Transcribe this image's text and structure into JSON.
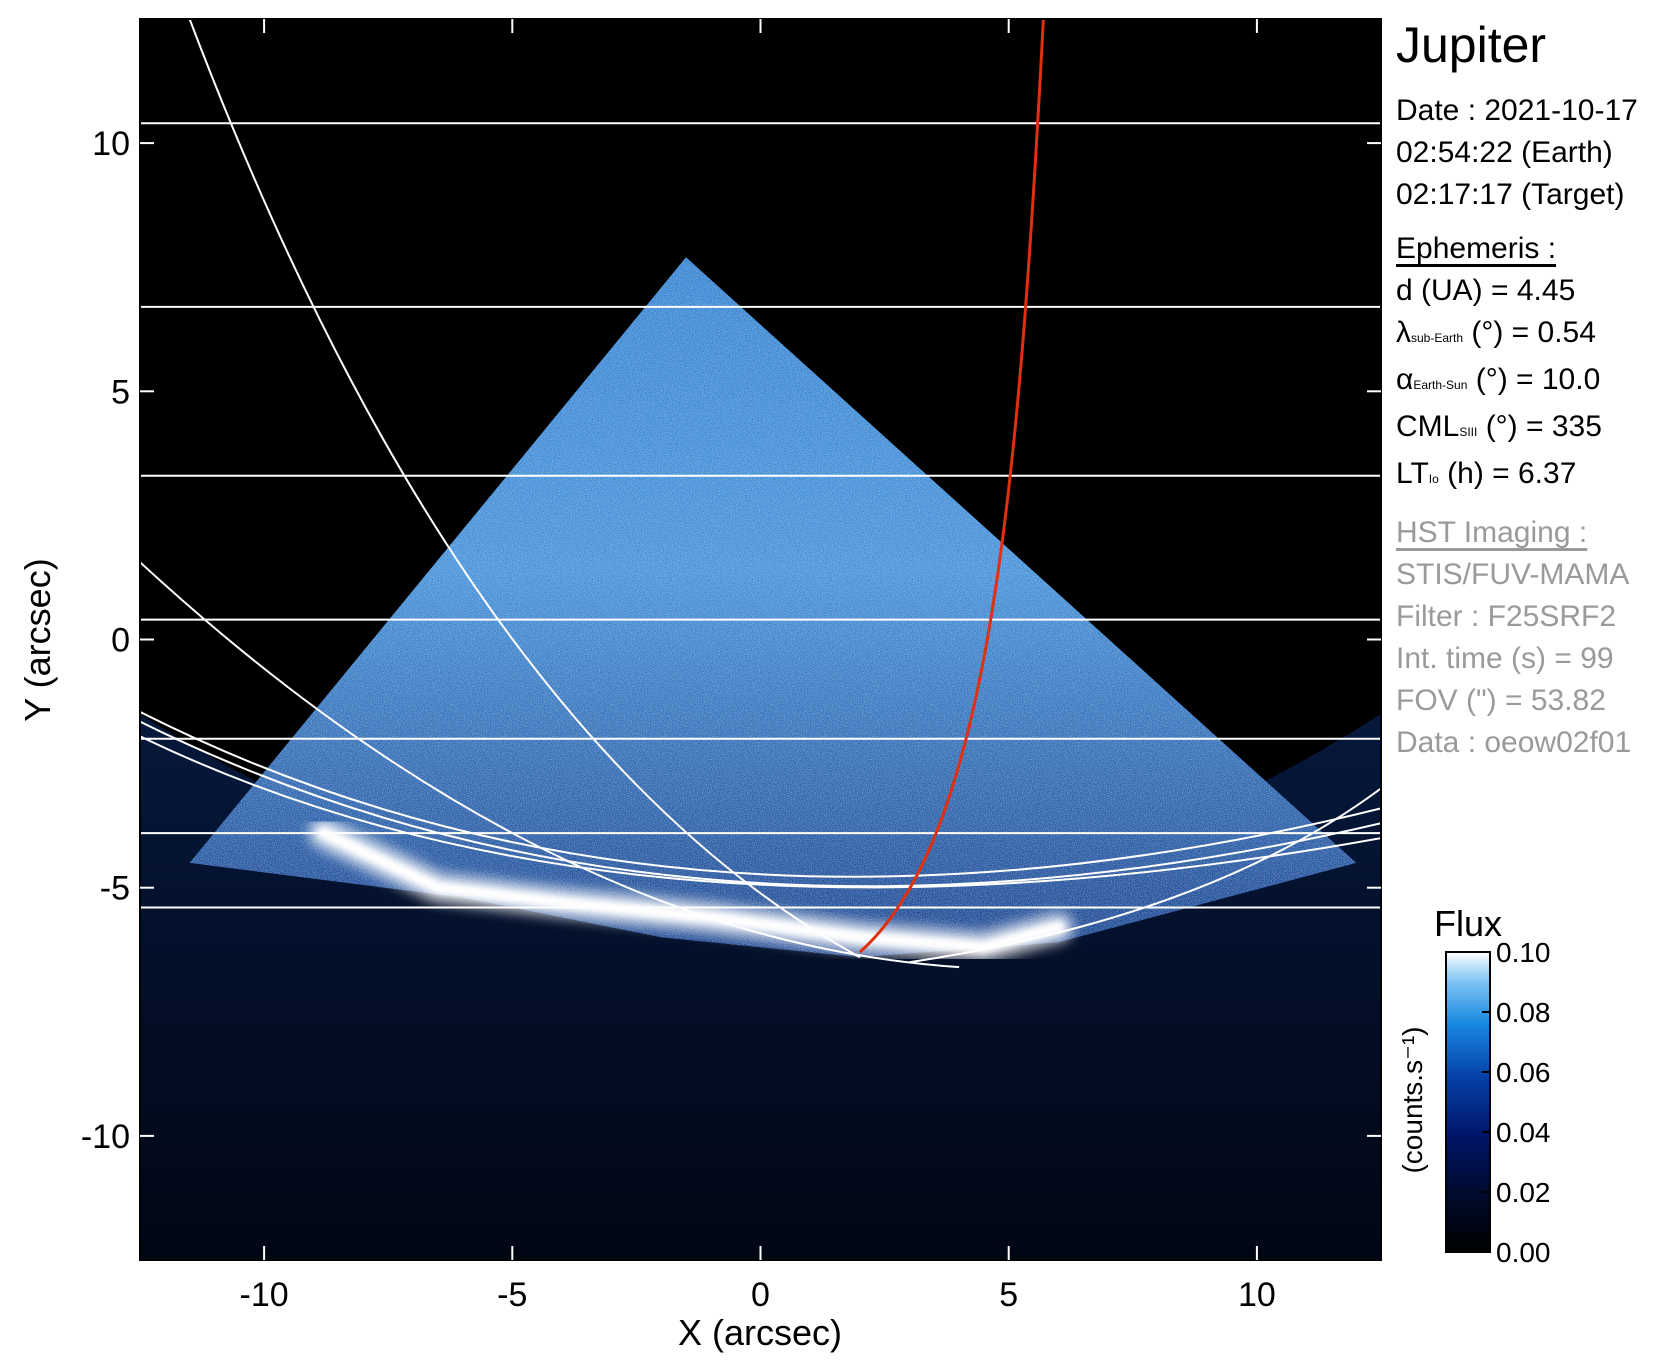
{
  "chart_data": {
    "type": "heatmap",
    "xlabel": "X (arcsec)",
    "ylabel": "Y (arcsec)",
    "xlim": [
      -12.5,
      12.5
    ],
    "ylim": [
      -12.5,
      12.5
    ],
    "x_ticks": [
      -10,
      -5,
      0,
      5,
      10
    ],
    "y_ticks": [
      10,
      5,
      0,
      -5,
      -10
    ],
    "x_tick_labels": [
      "-10",
      "-5",
      "0",
      "5",
      "10"
    ],
    "y_tick_labels": [
      "10",
      "5",
      "0",
      "-5",
      "-10"
    ],
    "colormap": [
      "#000000",
      "#000a2a",
      "#001466",
      "#0640a8",
      "#1888e0",
      "#7cc4f4",
      "#ffffff"
    ],
    "colorbar": {
      "title": "Flux",
      "label": "(counts.s⁻¹)",
      "range": [
        0.0,
        0.1
      ],
      "ticks": [
        0.1,
        0.08,
        0.06,
        0.04,
        0.02,
        0.0
      ],
      "tick_labels": [
        "0.10",
        "0.08",
        "0.06",
        "0.04",
        "0.02",
        "0.00"
      ]
    },
    "image_region": {
      "description": "triangular detector footprint, apex near (-1.5, 7.7), edges down to about (-11, -3.5) and (11.5, -3.5); Jupiter disk fills the lower area",
      "apex": [
        -1.5,
        7.7
      ],
      "left_corner": [
        -11.5,
        -4.5
      ],
      "right_corner": [
        12,
        -4.5
      ]
    },
    "auroral_oval": {
      "description": "bright emission arc from about (-9, -3.9) to (6, -5.8), peak brightness near (3 to 6, -6)",
      "points": [
        [
          -8.8,
          -3.9
        ],
        [
          -6.5,
          -5.0
        ],
        [
          -4,
          -5.3
        ],
        [
          -1,
          -5.6
        ],
        [
          2,
          -6.0
        ],
        [
          4.5,
          -6.2
        ],
        [
          6,
          -5.8
        ]
      ]
    },
    "grid_latitude_lines_y": [
      10.4,
      6.7,
      3.3,
      0.4,
      -2.0,
      -3.9,
      -5.4
    ],
    "io_footprint_color": "#e03010",
    "grid_color": "#ffffff"
  },
  "info": {
    "planet": "Jupiter",
    "date_line": "Date : 2021-10-17",
    "earth_time": "02:54:22 (Earth)",
    "target_time": "02:17:17 (Target)",
    "ephemeris_header": "Ephemeris :",
    "distance": "d (UA)    = 4.45",
    "lambda_sym": "λ",
    "lambda_sub": "sub-Earth",
    "lambda_val": " (°) = 0.54",
    "alpha_sym": "α",
    "alpha_sub": "Earth-Sun",
    "alpha_val": " (°) = 10.0",
    "cml_sym": "CML",
    "cml_sub": "SIII",
    "cml_val": " (°) = 335",
    "lt_sym": "LT",
    "lt_sub": "Io",
    "lt_val": " (h) = 6.37",
    "hst_header": "HST Imaging :",
    "instrument": "STIS/FUV-MAMA",
    "filter": "Filter : F25SRF2",
    "int_time": "Int. time (s) = 99",
    "fov": "FOV (\") = 53.82",
    "data": "Data : oeow02f01"
  }
}
